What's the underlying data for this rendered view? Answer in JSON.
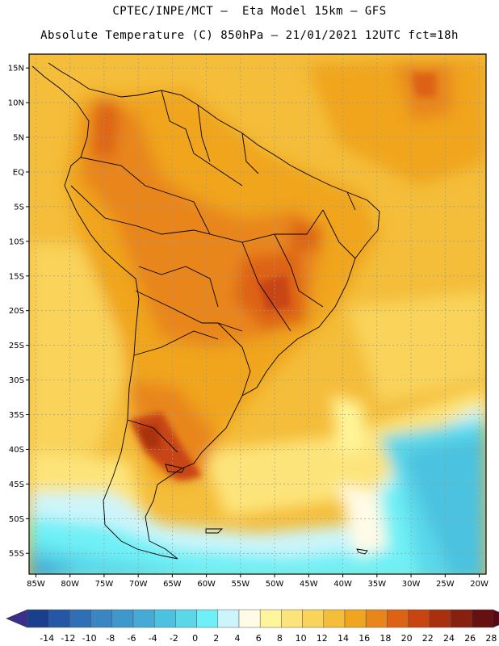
{
  "header": {
    "line1": "CPTEC/INPE/MCT –  Eta Model 15km – GFS",
    "line2": "Absolute Temperature (C) 850hPa – 21/01/2021 12UTC fct=18h"
  },
  "map": {
    "lon_range": [
      -86,
      -19
    ],
    "lat_range": [
      -58,
      17
    ],
    "lon_ticks": [
      "85W",
      "80W",
      "75W",
      "70W",
      "65W",
      "60W",
      "55W",
      "50W",
      "45W",
      "40W",
      "35W",
      "30W",
      "25W",
      "20W"
    ],
    "lat_ticks": [
      "15N",
      "10N",
      "5N",
      "EQ",
      "5S",
      "10S",
      "15S",
      "20S",
      "25S",
      "30S",
      "35S",
      "40S",
      "45S",
      "50S",
      "55S"
    ],
    "gridlines": true
  },
  "colorbar": {
    "labels": [
      "-14",
      "-12",
      "-10",
      "-8",
      "-6",
      "-4",
      "-2",
      "0",
      "2",
      "4",
      "6",
      "8",
      "10",
      "12",
      "14",
      "16",
      "18",
      "20",
      "22",
      "24",
      "26",
      "28"
    ],
    "colors": [
      "#1a3f8f",
      "#2457a6",
      "#2e6fb5",
      "#3a86c2",
      "#3f98cc",
      "#45aad6",
      "#4cc2e0",
      "#5ad8ea",
      "#6ff0f6",
      "#ccf5fb",
      "#fffbe6",
      "#fff59a",
      "#fde47a",
      "#f9d35a",
      "#f4bd3a",
      "#f0a51e",
      "#e8861b",
      "#dd6216",
      "#c84512",
      "#a8300e",
      "#87200e",
      "#661010"
    ]
  }
}
